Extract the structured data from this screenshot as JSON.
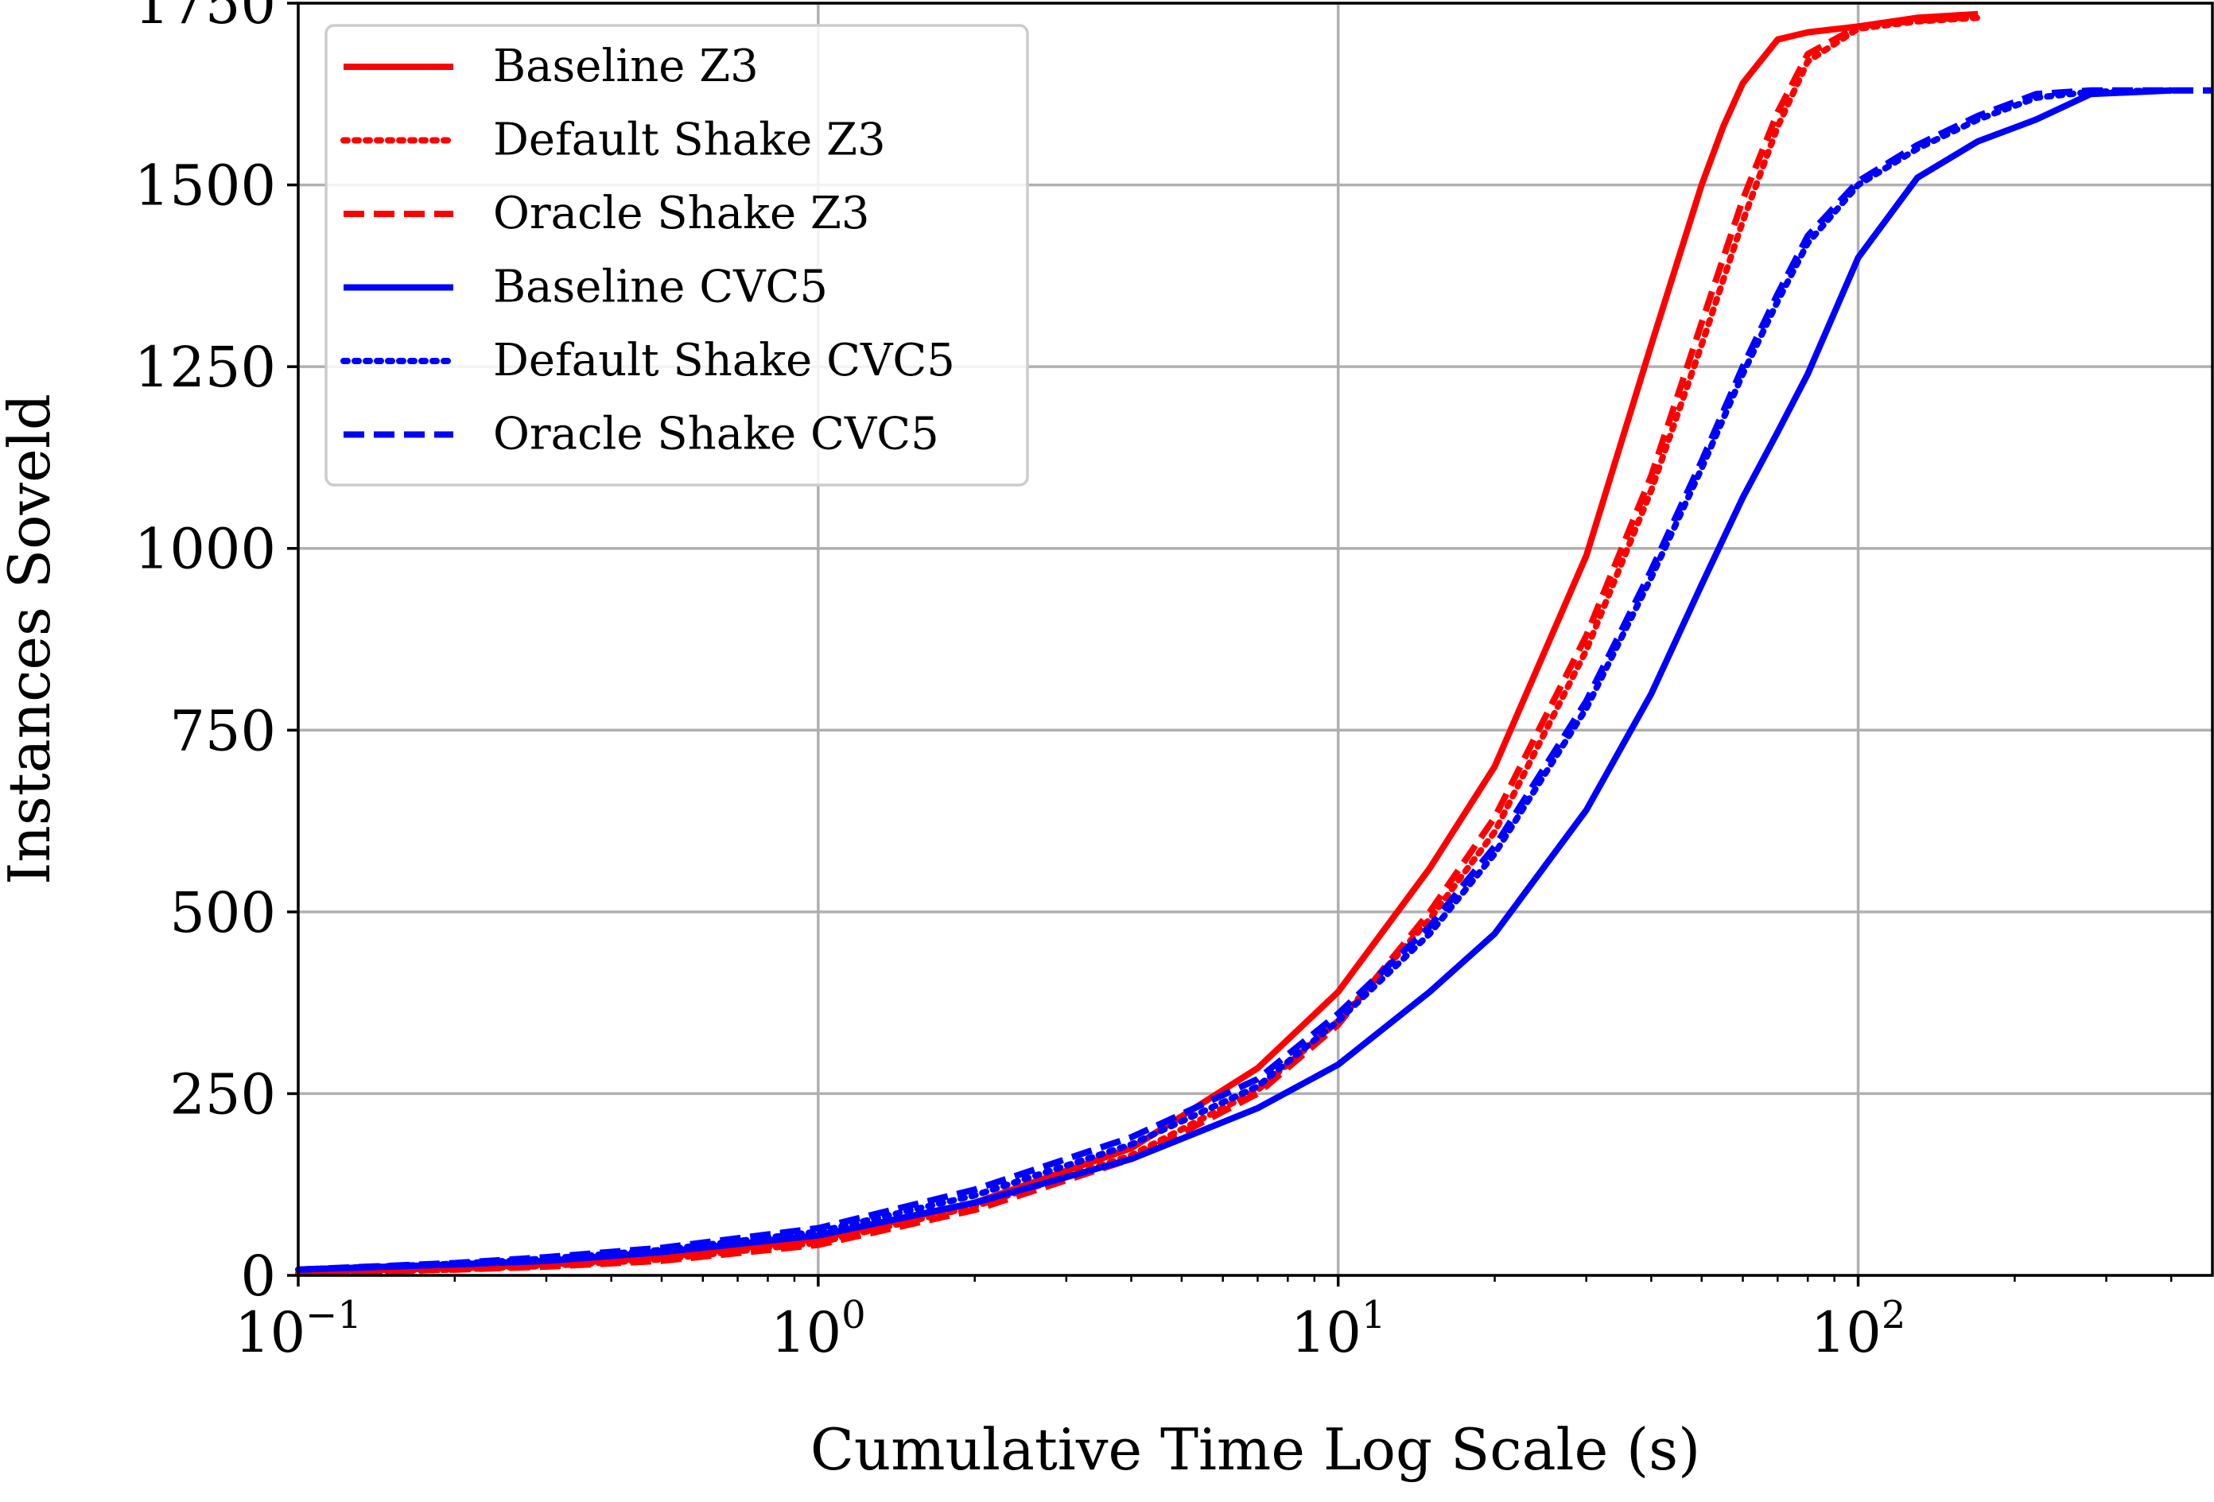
{
  "chart_data": {
    "type": "line",
    "title": "",
    "xlabel": "Cumulative Time Log Scale (s)",
    "ylabel": "Instances Soveld",
    "x_scale": "log",
    "xlim": [
      0.1,
      480
    ],
    "ylim": [
      0,
      1750
    ],
    "grid": true,
    "legend_position": "top-left",
    "x_ticks": [
      {
        "value": 0.1,
        "base": "10",
        "exp": "−1"
      },
      {
        "value": 1,
        "base": "10",
        "exp": "0"
      },
      {
        "value": 10,
        "base": "10",
        "exp": "1"
      },
      {
        "value": 100,
        "base": "10",
        "exp": "2"
      }
    ],
    "y_ticks": [
      0,
      250,
      500,
      750,
      1000,
      1250,
      1500,
      1750
    ],
    "series": [
      {
        "name": "Baseline Z3",
        "color": "#ff0000",
        "dash": "solid",
        "x": [
          0.1,
          0.2,
          0.3,
          0.5,
          1,
          2,
          4,
          7,
          10,
          15,
          20,
          30,
          40,
          50,
          55,
          60,
          70,
          80,
          100,
          130,
          170
        ],
        "y": [
          5,
          10,
          15,
          25,
          50,
          100,
          175,
          285,
          390,
          560,
          700,
          990,
          1280,
          1500,
          1580,
          1640,
          1700,
          1710,
          1718,
          1730,
          1735
        ]
      },
      {
        "name": "Default Shake Z3",
        "color": "#ff0000",
        "dash": "dotted",
        "x": [
          0.1,
          0.2,
          0.3,
          0.5,
          1,
          2,
          4,
          7,
          10,
          15,
          20,
          30,
          40,
          50,
          60,
          70,
          80,
          100,
          130,
          170
        ],
        "y": [
          3,
          8,
          13,
          22,
          45,
          95,
          165,
          255,
          350,
          490,
          610,
          860,
          1080,
          1280,
          1450,
          1580,
          1670,
          1715,
          1725,
          1730
        ]
      },
      {
        "name": "Oracle Shake Z3",
        "color": "#ff0000",
        "dash": "dashed",
        "x": [
          0.1,
          0.2,
          0.3,
          0.5,
          1,
          2,
          4,
          7,
          10,
          15,
          20,
          30,
          40,
          50,
          60,
          70,
          80,
          100,
          130,
          170
        ],
        "y": [
          3,
          8,
          12,
          20,
          42,
          90,
          160,
          250,
          345,
          500,
          630,
          880,
          1100,
          1310,
          1480,
          1600,
          1680,
          1718,
          1726,
          1732
        ]
      },
      {
        "name": "Baseline CVC5",
        "color": "#0000ff",
        "dash": "solid",
        "x": [
          0.1,
          0.2,
          0.3,
          0.5,
          1,
          2,
          4,
          7,
          10,
          15,
          20,
          30,
          40,
          50,
          60,
          70,
          80,
          100,
          130,
          170,
          220,
          280,
          400
        ],
        "y": [
          8,
          15,
          20,
          32,
          55,
          100,
          160,
          230,
          290,
          390,
          470,
          640,
          800,
          950,
          1070,
          1160,
          1240,
          1400,
          1510,
          1560,
          1590,
          1625,
          1630
        ]
      },
      {
        "name": "Default Shake CVC5",
        "color": "#0000ff",
        "dash": "dotted",
        "x": [
          0.1,
          0.2,
          0.3,
          0.5,
          1,
          2,
          4,
          7,
          10,
          15,
          20,
          30,
          40,
          50,
          60,
          70,
          80,
          100,
          130,
          170,
          220,
          280,
          400
        ],
        "y": [
          8,
          16,
          23,
          35,
          60,
          110,
          180,
          260,
          350,
          470,
          580,
          780,
          960,
          1110,
          1240,
          1340,
          1420,
          1500,
          1550,
          1590,
          1620,
          1628,
          1630
        ]
      },
      {
        "name": "Oracle Shake CVC5",
        "color": "#0000ff",
        "dash": "dashed",
        "x": [
          0.1,
          0.2,
          0.3,
          0.5,
          1,
          2,
          4,
          7,
          10,
          15,
          20,
          30,
          40,
          50,
          60,
          70,
          80,
          100,
          130,
          170,
          220,
          280,
          400,
          480
        ],
        "y": [
          8,
          17,
          25,
          38,
          65,
          118,
          190,
          270,
          360,
          480,
          590,
          790,
          970,
          1120,
          1250,
          1350,
          1430,
          1505,
          1555,
          1595,
          1625,
          1630,
          1630,
          1630
        ]
      }
    ]
  }
}
